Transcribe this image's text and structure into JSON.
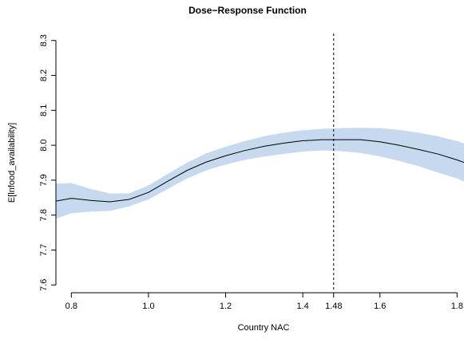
{
  "chart_data": {
    "type": "line",
    "title": "Dose−Response Function",
    "xlabel": "Country NAC",
    "ylabel": "E[lnfood_availability]",
    "xlim": [
      0.76,
      1.82
    ],
    "ylim": [
      7.58,
      8.32
    ],
    "x_ticks": [
      {
        "value": 0.8,
        "label": "0.8"
      },
      {
        "value": 1.0,
        "label": "1.0"
      },
      {
        "value": 1.2,
        "label": "1.2"
      },
      {
        "value": 1.4,
        "label": "1.4"
      },
      {
        "value": 1.48,
        "label": "1.48"
      },
      {
        "value": 1.6,
        "label": "1.6"
      },
      {
        "value": 1.8,
        "label": "1.8"
      }
    ],
    "y_ticks": [
      {
        "value": 7.6,
        "label": "7.6"
      },
      {
        "value": 7.7,
        "label": "7.7"
      },
      {
        "value": 7.8,
        "label": "7.8"
      },
      {
        "value": 7.9,
        "label": "7.9"
      },
      {
        "value": 8.0,
        "label": "8.0"
      },
      {
        "value": 8.1,
        "label": "8.1"
      },
      {
        "value": 8.2,
        "label": "8.2"
      },
      {
        "value": 8.3,
        "label": "8.3"
      }
    ],
    "reference_line_x": 1.48,
    "grid": false,
    "colors": {
      "band": "#c6d9ef",
      "line": "#000000",
      "reference": "#000000"
    },
    "series": [
      {
        "x": [
          0.76,
          0.8,
          0.85,
          0.9,
          0.95,
          1.0,
          1.05,
          1.1,
          1.15,
          1.2,
          1.25,
          1.3,
          1.35,
          1.4,
          1.45,
          1.5,
          1.55,
          1.6,
          1.65,
          1.7,
          1.75,
          1.8,
          1.82
        ],
        "estimate": [
          7.84,
          7.848,
          7.842,
          7.838,
          7.845,
          7.865,
          7.897,
          7.928,
          7.952,
          7.97,
          7.985,
          7.997,
          8.006,
          8.013,
          8.016,
          8.016,
          8.016,
          8.01,
          8.0,
          7.988,
          7.975,
          7.958,
          7.95
        ],
        "lower": [
          7.79,
          7.805,
          7.81,
          7.812,
          7.825,
          7.845,
          7.875,
          7.905,
          7.928,
          7.945,
          7.958,
          7.968,
          7.975,
          7.982,
          7.985,
          7.983,
          7.978,
          7.968,
          7.955,
          7.94,
          7.922,
          7.905,
          7.895
        ],
        "upper": [
          7.89,
          7.892,
          7.875,
          7.862,
          7.862,
          7.885,
          7.918,
          7.95,
          7.977,
          7.996,
          8.012,
          8.026,
          8.036,
          8.043,
          8.047,
          8.049,
          8.05,
          8.049,
          8.044,
          8.036,
          8.026,
          8.012,
          8.005
        ]
      }
    ]
  }
}
